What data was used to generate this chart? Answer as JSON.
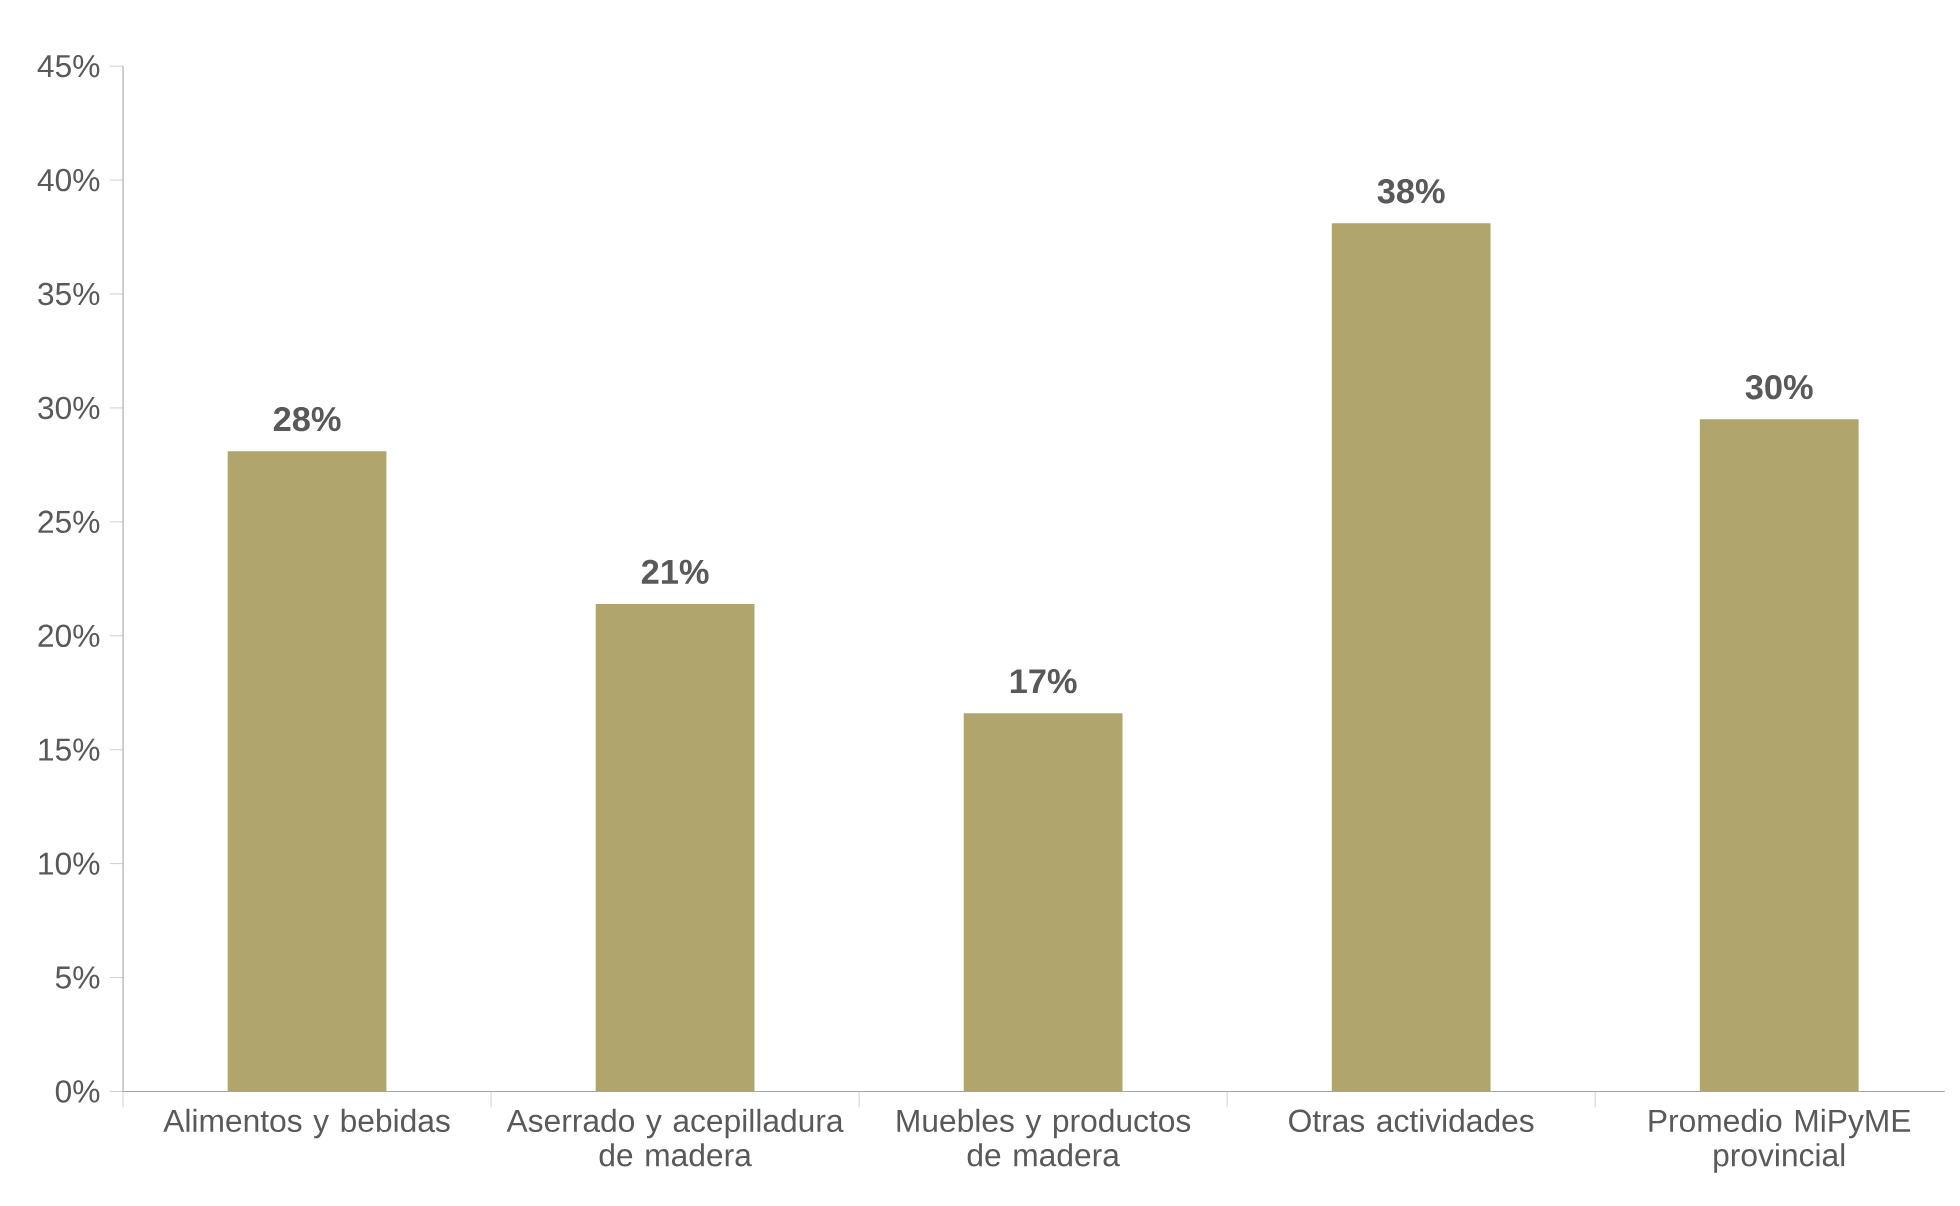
{
  "chart_data": {
    "type": "bar",
    "categories": [
      "Alimentos y bebidas",
      "Aserrado y acepilladura de madera",
      "Muebles y productos de madera",
      "Otras actividades",
      "Promedio MiPyME provincial"
    ],
    "values": [
      28.1,
      21.4,
      16.6,
      38.1,
      29.5
    ],
    "value_labels": [
      "28%",
      "21%",
      "17%",
      "38%",
      "30%"
    ],
    "color": "#b0a56d",
    "ylim": [
      0,
      45
    ],
    "yticks": [
      {
        "value": 0,
        "label": "0%"
      },
      {
        "value": 5,
        "label": "5%"
      },
      {
        "value": 10,
        "label": "10%"
      },
      {
        "value": 15,
        "label": "15%"
      },
      {
        "value": 20,
        "label": "20%"
      },
      {
        "value": 25,
        "label": "25%"
      },
      {
        "value": 30,
        "label": "30%"
      },
      {
        "value": 35,
        "label": "35%"
      },
      {
        "value": 40,
        "label": "40%"
      },
      {
        "value": 45,
        "label": "45%"
      }
    ],
    "grid": false
  }
}
